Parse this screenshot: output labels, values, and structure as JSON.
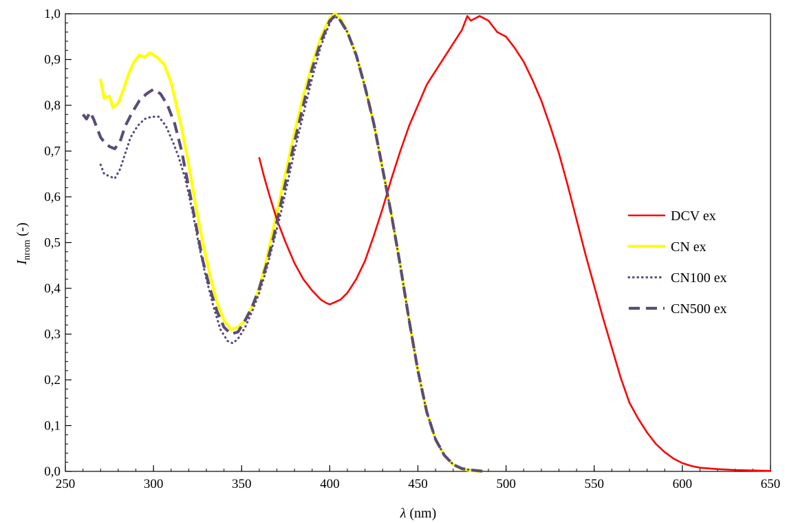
{
  "chart_data": {
    "type": "line",
    "xlim": [
      250,
      650
    ],
    "ylim": [
      0,
      1.0
    ],
    "x_ticks": [
      250,
      300,
      350,
      400,
      450,
      500,
      550,
      600,
      650
    ],
    "x_tick_labels": [
      "250",
      "300",
      "350",
      "400",
      "450",
      "500",
      "550",
      "600",
      "650"
    ],
    "y_ticks": [
      0,
      0.1,
      0.2,
      0.3,
      0.4,
      0.5,
      0.6,
      0.7,
      0.8,
      0.9,
      1.0
    ],
    "y_tick_labels": [
      "0,0",
      "0,1",
      "0,2",
      "0,3",
      "0,4",
      "0,5",
      "0,6",
      "0,7",
      "0,8",
      "0,9",
      "1,0"
    ],
    "xlabel_symbol": "λ",
    "xlabel_unit": " (nm)",
    "ylabel_symbol": "I",
    "ylabel_sub": "nrom",
    "ylabel_unit": " (-)",
    "grid": false,
    "legend_position": "right",
    "series": [
      {
        "name": "DCV ex",
        "color": "#ff0000",
        "style": "solid",
        "points": [
          [
            360,
            0.685
          ],
          [
            363,
            0.64
          ],
          [
            366,
            0.6
          ],
          [
            370,
            0.55
          ],
          [
            375,
            0.5
          ],
          [
            380,
            0.455
          ],
          [
            385,
            0.42
          ],
          [
            390,
            0.395
          ],
          [
            395,
            0.375
          ],
          [
            398,
            0.368
          ],
          [
            400,
            0.365
          ],
          [
            403,
            0.37
          ],
          [
            406,
            0.375
          ],
          [
            410,
            0.39
          ],
          [
            415,
            0.42
          ],
          [
            420,
            0.46
          ],
          [
            425,
            0.515
          ],
          [
            430,
            0.575
          ],
          [
            435,
            0.64
          ],
          [
            440,
            0.7
          ],
          [
            445,
            0.755
          ],
          [
            450,
            0.8
          ],
          [
            455,
            0.845
          ],
          [
            460,
            0.875
          ],
          [
            465,
            0.905
          ],
          [
            470,
            0.935
          ],
          [
            475,
            0.965
          ],
          [
            478,
            0.995
          ],
          [
            480,
            0.985
          ],
          [
            485,
            0.995
          ],
          [
            490,
            0.985
          ],
          [
            495,
            0.96
          ],
          [
            500,
            0.95
          ],
          [
            505,
            0.925
          ],
          [
            510,
            0.895
          ],
          [
            515,
            0.855
          ],
          [
            520,
            0.81
          ],
          [
            525,
            0.755
          ],
          [
            530,
            0.695
          ],
          [
            535,
            0.625
          ],
          [
            540,
            0.55
          ],
          [
            545,
            0.475
          ],
          [
            550,
            0.405
          ],
          [
            555,
            0.335
          ],
          [
            560,
            0.27
          ],
          [
            565,
            0.205
          ],
          [
            570,
            0.15
          ],
          [
            575,
            0.115
          ],
          [
            580,
            0.085
          ],
          [
            585,
            0.06
          ],
          [
            590,
            0.042
          ],
          [
            595,
            0.028
          ],
          [
            600,
            0.018
          ],
          [
            605,
            0.012
          ],
          [
            610,
            0.008
          ],
          [
            620,
            0.005
          ],
          [
            630,
            0.003
          ],
          [
            640,
            0.002
          ],
          [
            650,
            0.001
          ]
        ]
      },
      {
        "name": "CN ex",
        "color": "#ffff00",
        "style": "solid",
        "points": [
          [
            270,
            0.855
          ],
          [
            272,
            0.815
          ],
          [
            275,
            0.82
          ],
          [
            277,
            0.795
          ],
          [
            280,
            0.805
          ],
          [
            283,
            0.835
          ],
          [
            286,
            0.87
          ],
          [
            289,
            0.895
          ],
          [
            292,
            0.91
          ],
          [
            295,
            0.905
          ],
          [
            298,
            0.915
          ],
          [
            302,
            0.905
          ],
          [
            306,
            0.89
          ],
          [
            310,
            0.85
          ],
          [
            313,
            0.8
          ],
          [
            316,
            0.75
          ],
          [
            320,
            0.67
          ],
          [
            324,
            0.58
          ],
          [
            328,
            0.5
          ],
          [
            332,
            0.43
          ],
          [
            336,
            0.37
          ],
          [
            340,
            0.33
          ],
          [
            344,
            0.31
          ],
          [
            348,
            0.315
          ],
          [
            352,
            0.33
          ],
          [
            356,
            0.36
          ],
          [
            360,
            0.4
          ],
          [
            364,
            0.46
          ],
          [
            368,
            0.53
          ],
          [
            372,
            0.6
          ],
          [
            376,
            0.67
          ],
          [
            380,
            0.74
          ],
          [
            385,
            0.82
          ],
          [
            390,
            0.89
          ],
          [
            395,
            0.95
          ],
          [
            400,
            0.99
          ],
          [
            403,
            1.0
          ],
          [
            406,
            0.99
          ],
          [
            410,
            0.96
          ],
          [
            415,
            0.91
          ],
          [
            420,
            0.84
          ],
          [
            425,
            0.76
          ],
          [
            430,
            0.66
          ],
          [
            435,
            0.56
          ],
          [
            440,
            0.45
          ],
          [
            445,
            0.33
          ],
          [
            450,
            0.22
          ],
          [
            455,
            0.13
          ],
          [
            460,
            0.07
          ],
          [
            465,
            0.035
          ],
          [
            470,
            0.015
          ],
          [
            475,
            0.005
          ],
          [
            480,
            0.002
          ],
          [
            485,
            0.0
          ]
        ]
      },
      {
        "name": "CN100 ex",
        "color": "#5a4c7a",
        "style": "dotted",
        "points": [
          [
            270,
            0.67
          ],
          [
            272,
            0.65
          ],
          [
            275,
            0.645
          ],
          [
            278,
            0.64
          ],
          [
            281,
            0.66
          ],
          [
            284,
            0.695
          ],
          [
            287,
            0.73
          ],
          [
            291,
            0.755
          ],
          [
            295,
            0.77
          ],
          [
            299,
            0.775
          ],
          [
            303,
            0.775
          ],
          [
            307,
            0.755
          ],
          [
            311,
            0.72
          ],
          [
            314,
            0.69
          ],
          [
            318,
            0.64
          ],
          [
            322,
            0.57
          ],
          [
            326,
            0.49
          ],
          [
            330,
            0.42
          ],
          [
            334,
            0.36
          ],
          [
            338,
            0.31
          ],
          [
            342,
            0.285
          ],
          [
            345,
            0.28
          ],
          [
            348,
            0.29
          ],
          [
            352,
            0.315
          ],
          [
            356,
            0.35
          ],
          [
            360,
            0.39
          ],
          [
            364,
            0.44
          ],
          [
            368,
            0.5
          ],
          [
            372,
            0.56
          ],
          [
            376,
            0.63
          ],
          [
            380,
            0.7
          ],
          [
            385,
            0.78
          ],
          [
            390,
            0.86
          ],
          [
            395,
            0.93
          ],
          [
            399,
            0.97
          ],
          [
            402,
            0.995
          ],
          [
            405,
            0.99
          ],
          [
            410,
            0.96
          ],
          [
            415,
            0.91
          ],
          [
            420,
            0.84
          ],
          [
            425,
            0.76
          ],
          [
            430,
            0.66
          ],
          [
            435,
            0.56
          ],
          [
            440,
            0.45
          ],
          [
            445,
            0.33
          ],
          [
            450,
            0.22
          ],
          [
            455,
            0.13
          ],
          [
            460,
            0.07
          ],
          [
            465,
            0.035
          ],
          [
            470,
            0.015
          ],
          [
            475,
            0.006
          ],
          [
            480,
            0.003
          ],
          [
            488,
            0.0
          ]
        ]
      },
      {
        "name": "CN500 ex",
        "color": "#5a4c7a",
        "style": "dashed",
        "points": [
          [
            260,
            0.78
          ],
          [
            262,
            0.77
          ],
          [
            264,
            0.785
          ],
          [
            266,
            0.77
          ],
          [
            268,
            0.75
          ],
          [
            270,
            0.73
          ],
          [
            272,
            0.72
          ],
          [
            275,
            0.71
          ],
          [
            278,
            0.705
          ],
          [
            281,
            0.72
          ],
          [
            284,
            0.755
          ],
          [
            288,
            0.785
          ],
          [
            292,
            0.81
          ],
          [
            296,
            0.825
          ],
          [
            300,
            0.835
          ],
          [
            304,
            0.825
          ],
          [
            308,
            0.8
          ],
          [
            312,
            0.76
          ],
          [
            316,
            0.7
          ],
          [
            320,
            0.62
          ],
          [
            324,
            0.54
          ],
          [
            328,
            0.46
          ],
          [
            332,
            0.4
          ],
          [
            336,
            0.35
          ],
          [
            340,
            0.315
          ],
          [
            344,
            0.3
          ],
          [
            348,
            0.305
          ],
          [
            352,
            0.33
          ],
          [
            356,
            0.36
          ],
          [
            360,
            0.4
          ],
          [
            364,
            0.45
          ],
          [
            368,
            0.51
          ],
          [
            372,
            0.58
          ],
          [
            376,
            0.65
          ],
          [
            380,
            0.72
          ],
          [
            385,
            0.8
          ],
          [
            390,
            0.88
          ],
          [
            395,
            0.94
          ],
          [
            400,
            0.985
          ],
          [
            403,
            0.995
          ],
          [
            406,
            0.985
          ],
          [
            410,
            0.96
          ],
          [
            415,
            0.91
          ],
          [
            420,
            0.84
          ],
          [
            425,
            0.76
          ],
          [
            430,
            0.66
          ],
          [
            435,
            0.56
          ],
          [
            440,
            0.45
          ],
          [
            445,
            0.33
          ],
          [
            450,
            0.22
          ],
          [
            455,
            0.13
          ],
          [
            460,
            0.07
          ],
          [
            465,
            0.035
          ],
          [
            470,
            0.015
          ],
          [
            475,
            0.006
          ],
          [
            480,
            0.003
          ],
          [
            488,
            0.0
          ]
        ]
      }
    ]
  }
}
